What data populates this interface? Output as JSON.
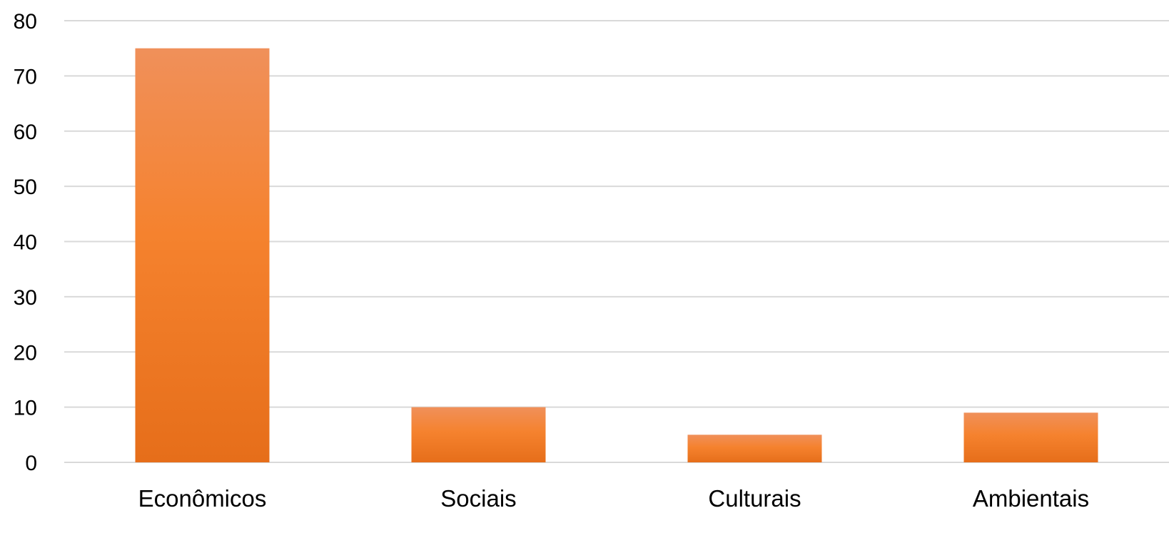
{
  "chart_data": {
    "type": "bar",
    "categories": [
      "Econômicos",
      "Sociais",
      "Culturais",
      "Ambientais"
    ],
    "values": [
      75,
      10,
      5,
      9
    ],
    "ylim": [
      0,
      80
    ],
    "yticks": [
      0,
      10,
      20,
      30,
      40,
      50,
      60,
      70,
      80
    ],
    "grid": true,
    "legend": "none",
    "colors": {
      "bar_top": "#f0905a",
      "bar_mid": "#f5822e",
      "bar_bottom": "#e66e1a",
      "grid": "#d9d9d9"
    }
  }
}
